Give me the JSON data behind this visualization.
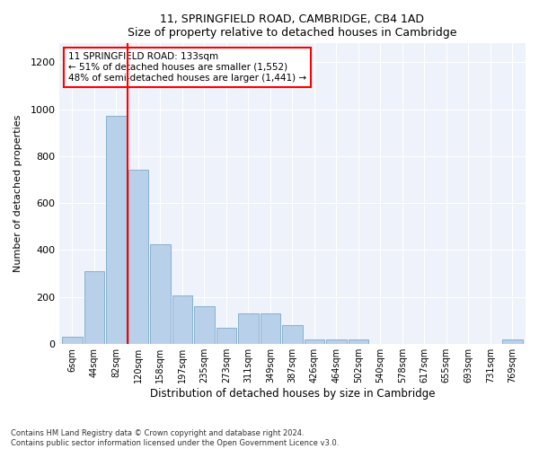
{
  "title1": "11, SPRINGFIELD ROAD, CAMBRIDGE, CB4 1AD",
  "title2": "Size of property relative to detached houses in Cambridge",
  "xlabel": "Distribution of detached houses by size in Cambridge",
  "ylabel": "Number of detached properties",
  "categories": [
    "6sqm",
    "44sqm",
    "82sqm",
    "120sqm",
    "158sqm",
    "197sqm",
    "235sqm",
    "273sqm",
    "311sqm",
    "349sqm",
    "387sqm",
    "426sqm",
    "464sqm",
    "502sqm",
    "540sqm",
    "578sqm",
    "617sqm",
    "655sqm",
    "693sqm",
    "731sqm",
    "769sqm"
  ],
  "values": [
    30,
    310,
    970,
    740,
    425,
    205,
    160,
    70,
    130,
    130,
    80,
    20,
    20,
    20,
    0,
    0,
    0,
    0,
    0,
    0,
    20
  ],
  "bar_color": "#b8d0ea",
  "bar_edge_color": "#7aaac8",
  "vline_color": "red",
  "vline_x": 2.5,
  "annotation_text": "11 SPRINGFIELD ROAD: 133sqm\n← 51% of detached houses are smaller (1,552)\n48% of semi-detached houses are larger (1,441) →",
  "annotation_box_color": "white",
  "annotation_box_edge_color": "red",
  "ylim": [
    0,
    1280
  ],
  "yticks": [
    0,
    200,
    400,
    600,
    800,
    1000,
    1200
  ],
  "footer1": "Contains HM Land Registry data © Crown copyright and database right 2024.",
  "footer2": "Contains public sector information licensed under the Open Government Licence v3.0.",
  "bg_color": "#eef2fb"
}
